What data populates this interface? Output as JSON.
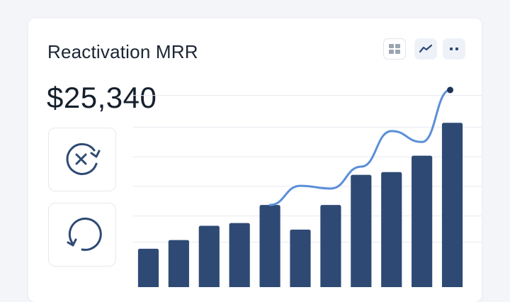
{
  "card": {
    "title": "Reactivation MRR",
    "amount": "$25,340"
  },
  "toolbar": {
    "buttons": [
      {
        "name": "grid-view-button",
        "icon": "grid-icon"
      },
      {
        "name": "line-view-button",
        "icon": "trend-line-icon"
      },
      {
        "name": "more-button",
        "icon": "more-icon"
      }
    ]
  },
  "side_buttons": [
    {
      "name": "cancel-reactivation-button",
      "icon": "circle-x-refresh-icon"
    },
    {
      "name": "refresh-button",
      "icon": "refresh-icon"
    }
  ],
  "colors": {
    "bar": "#2e4a74",
    "line": "#5a8fd8",
    "text": "#1b2533",
    "grid": "#e6e9ee"
  },
  "chart_data": {
    "type": "bar",
    "categories": [
      "",
      "",
      "",
      "",
      "",
      "",
      "",
      "",
      "",
      "",
      ""
    ],
    "series": [
      {
        "values": [
          7.0,
          8.6,
          11.2,
          11.7,
          15.0,
          10.5,
          15.0,
          20.5,
          21.0,
          24.0,
          30.0
        ]
      }
    ],
    "trend_line": [
      15.0,
      18.5,
      18.0,
      22.0,
      28.5,
      26.5,
      36.0
    ],
    "ylim": [
      0,
      40
    ],
    "grid": true,
    "legend": "none"
  }
}
